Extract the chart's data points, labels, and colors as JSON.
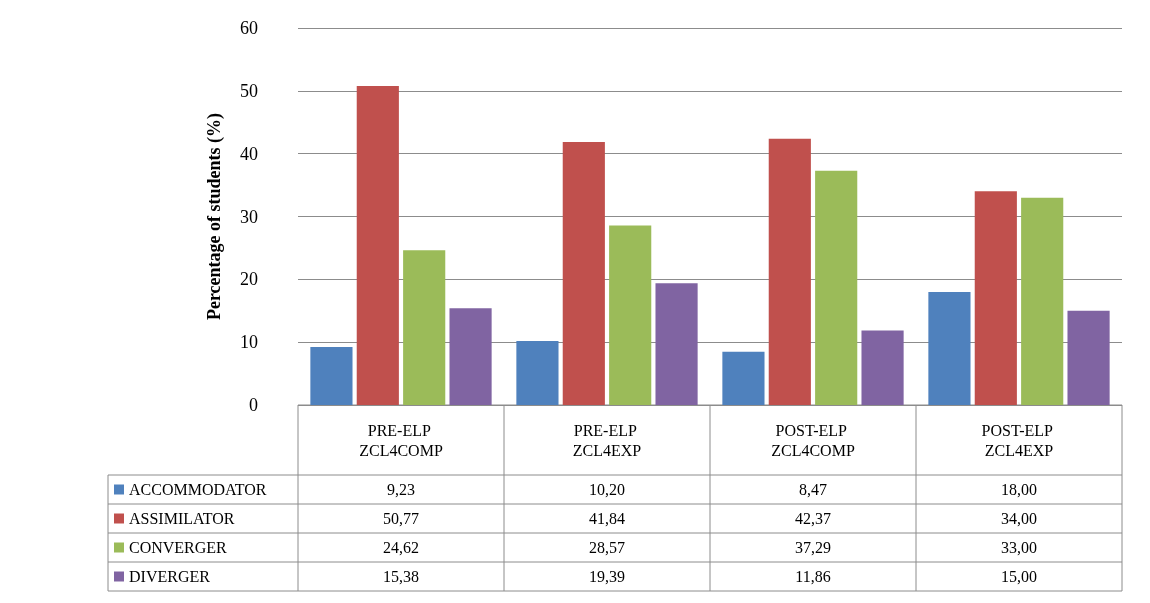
{
  "chart_data": {
    "type": "bar",
    "ylabel": "Percentage of students (%)",
    "categories": [
      "PRE-ELP ZCL4COMP",
      "PRE-ELP ZCL4EXP",
      "POST-ELP ZCL4COMP",
      "POST-ELP ZCL4EXP"
    ],
    "series": [
      {
        "name": "ACCOMMODATOR",
        "color": "#4f81bd",
        "values": [
          9.23,
          10.2,
          8.47,
          18.0
        ],
        "value_labels": [
          "9,23",
          "10,20",
          "8,47",
          "18,00"
        ]
      },
      {
        "name": "ASSIMILATOR",
        "color": "#c0504d",
        "values": [
          50.77,
          41.84,
          42.37,
          34.0
        ],
        "value_labels": [
          "50,77",
          "41,84",
          "42,37",
          "34,00"
        ]
      },
      {
        "name": "CONVERGER",
        "color": "#9bbb59",
        "values": [
          24.62,
          28.57,
          37.29,
          33.0
        ],
        "value_labels": [
          "24,62",
          "28,57",
          "37,29",
          "33,00"
        ]
      },
      {
        "name": "DIVERGER",
        "color": "#8064a2",
        "values": [
          15.38,
          19.39,
          11.86,
          15.0
        ],
        "value_labels": [
          "15,38",
          "19,39",
          "11,86",
          "15,00"
        ]
      }
    ],
    "ylim": [
      0,
      60
    ],
    "yticks": [
      0,
      10,
      20,
      30,
      40,
      50,
      60
    ],
    "grid": "y",
    "legend": "bottom left"
  }
}
